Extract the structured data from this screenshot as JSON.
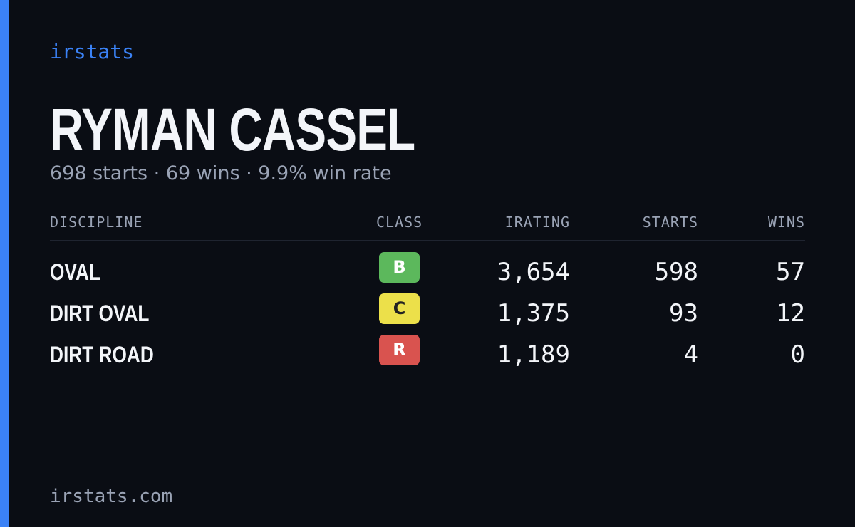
{
  "brand": "irstats",
  "driver": {
    "name": "RYMAN CASSEL",
    "summary": "698 starts · 69 wins · 9.9% win rate"
  },
  "table": {
    "headers": [
      "DISCIPLINE",
      "CLASS",
      "IRATING",
      "STARTS",
      "WINS"
    ],
    "rows": [
      [
        "OVAL",
        "B",
        "3,654",
        "598",
        "57"
      ],
      [
        "DIRT OVAL",
        "C",
        "1,375",
        "93",
        "12"
      ],
      [
        "DIRT ROAD",
        "R",
        "1,189",
        "4",
        "0"
      ]
    ]
  },
  "footer": "irstats.com"
}
